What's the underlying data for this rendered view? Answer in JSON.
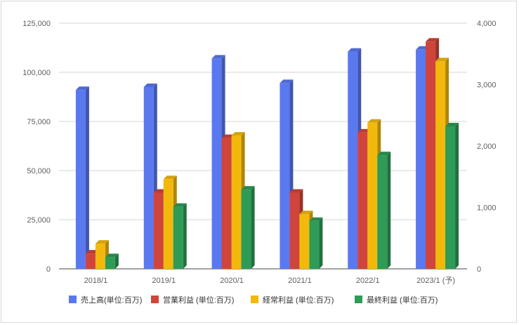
{
  "chart_data": {
    "type": "bar",
    "categories": [
      "2018/1",
      "2019/1",
      "2020/1",
      "2021/1",
      "2022/1",
      "2023/1 (予)"
    ],
    "series": [
      {
        "name": "売上高(単位:百万)",
        "axis": "left",
        "color": "#5a78f0",
        "values": [
          91000,
          92500,
          107000,
          94500,
          110500,
          111500
        ]
      },
      {
        "name": "営業利益 (単位:百万)",
        "axis": "right",
        "color": "#d0453b",
        "values": [
          250,
          1240,
          2130,
          1240,
          2220,
          3700
        ]
      },
      {
        "name": "経常利益 (単位:百万)",
        "axis": "right",
        "color": "#f2b90c",
        "values": [
          410,
          1460,
          2170,
          890,
          2380,
          3380
        ]
      },
      {
        "name": "最終利益 (単位:百万)",
        "axis": "right",
        "color": "#2e9b57",
        "values": [
          190,
          1010,
          1290,
          780,
          1850,
          2320
        ]
      }
    ],
    "y_left": {
      "ylim": [
        0,
        125000
      ],
      "ticks": [
        "0",
        "25,000",
        "50,000",
        "75,000",
        "100,000",
        "125,000"
      ],
      "tick_values": [
        0,
        25000,
        50000,
        75000,
        100000,
        125000
      ]
    },
    "y_right": {
      "ylim": [
        0,
        4000
      ],
      "ticks": [
        "0",
        "1,000",
        "2,000",
        "3,000",
        "4,000"
      ],
      "tick_values": [
        0,
        1000,
        2000,
        3000,
        4000
      ]
    },
    "grid": true,
    "legend_position": "bottom",
    "bar_style": "3d"
  }
}
